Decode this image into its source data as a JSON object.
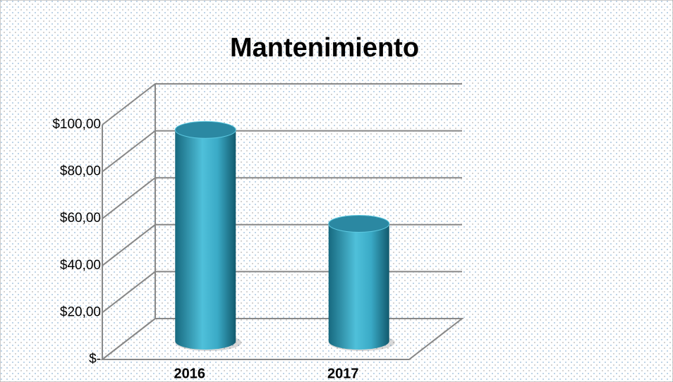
{
  "chart_data": {
    "type": "bar3d",
    "title": "Mantenimiento",
    "categories": [
      "2016",
      "2017"
    ],
    "values": [
      90,
      50
    ],
    "color": "#2aa3c2",
    "ylim": [
      0,
      100
    ],
    "yticks": [
      {
        "value": 0,
        "label": "$-"
      },
      {
        "value": 20,
        "label": "$20,00"
      },
      {
        "value": 40,
        "label": "$40,00"
      },
      {
        "value": 60,
        "label": "$60,00"
      },
      {
        "value": 80,
        "label": "$80,00"
      },
      {
        "value": 100,
        "label": "$100,00"
      }
    ],
    "grid": true
  }
}
